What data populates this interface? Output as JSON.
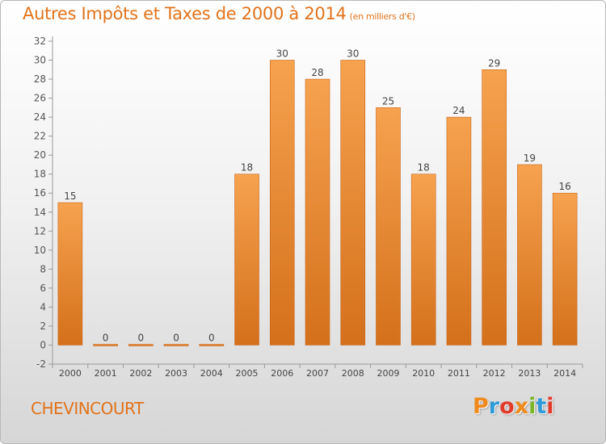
{
  "header": {
    "title": "Autres Impôts et Taxes de 2000 à 2014",
    "unit": "(en milliers d'€)"
  },
  "footer": {
    "commune": "CHEVINCOURT",
    "brand": "Proxiti",
    "brand_colors": [
      "#f08a1c",
      "#2f9ad8",
      "#e23b2a",
      "#f08a1c",
      "#7bb52a",
      "#2f9ad8",
      "#e23b2a"
    ]
  },
  "chart_data": {
    "type": "bar",
    "title": "Autres Impôts et Taxes de 2000 à 2014",
    "subtitle": "(en milliers d'€)",
    "categories": [
      "2000",
      "2001",
      "2002",
      "2003",
      "2004",
      "2005",
      "2006",
      "2007",
      "2008",
      "2009",
      "2010",
      "2011",
      "2012",
      "2013",
      "2014"
    ],
    "values": [
      15,
      0,
      0,
      0,
      0,
      18,
      30,
      28,
      30,
      25,
      18,
      24,
      29,
      19,
      16
    ],
    "data_labels": [
      "15",
      "0",
      "0",
      "0",
      "0",
      "18",
      "30",
      "28",
      "30",
      "25",
      "18",
      "24",
      "29",
      "19",
      "16"
    ],
    "ylim": [
      -2,
      32
    ],
    "yticks": [
      -2,
      0,
      2,
      4,
      6,
      8,
      10,
      12,
      14,
      16,
      18,
      20,
      22,
      24,
      26,
      28,
      30,
      32
    ],
    "grid": false,
    "bar_color_top": "#f6a24f",
    "bar_color_bottom": "#d4701b"
  }
}
